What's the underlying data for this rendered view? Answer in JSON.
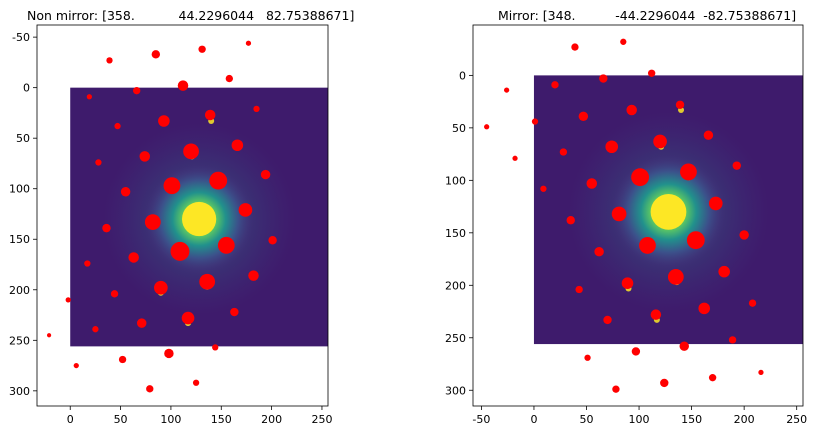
{
  "chart_data": [
    {
      "type": "scatter",
      "title": "Non mirror: [358.           44.2296044   82.75388671]",
      "xlabel": "",
      "ylabel": "",
      "xlim": [
        -33,
        256
      ],
      "ylim": [
        315,
        -62
      ],
      "y_inverted": true,
      "xticks": [
        0,
        50,
        100,
        150,
        200,
        250
      ],
      "yticks": [
        -50,
        0,
        50,
        100,
        150,
        200,
        250,
        300
      ],
      "grid": false,
      "background_image": {
        "extent": [
          0,
          256,
          0,
          256
        ],
        "colormap": "viridis",
        "description_hidden": true
      },
      "marker_color": "#ff0000",
      "points": [
        {
          "x": 85,
          "y": -33,
          "s": 4
        },
        {
          "x": 131,
          "y": -38,
          "s": 3.5
        },
        {
          "x": 177,
          "y": -44,
          "s": 2.5
        },
        {
          "x": 39,
          "y": -27,
          "s": 3
        },
        {
          "x": 158,
          "y": -9,
          "s": 3.5
        },
        {
          "x": 66,
          "y": 3,
          "s": 3.5
        },
        {
          "x": 112,
          "y": -2,
          "s": 5
        },
        {
          "x": 19,
          "y": 9,
          "s": 2.5
        },
        {
          "x": 185,
          "y": 21,
          "s": 3
        },
        {
          "x": 139,
          "y": 27,
          "s": 5
        },
        {
          "x": 93,
          "y": 33,
          "s": 5.5
        },
        {
          "x": 47,
          "y": 38,
          "s": 3
        },
        {
          "x": 166,
          "y": 57,
          "s": 5.5
        },
        {
          "x": 120,
          "y": 63,
          "s": 7.5
        },
        {
          "x": 74,
          "y": 68,
          "s": 5
        },
        {
          "x": 28,
          "y": 74,
          "s": 3
        },
        {
          "x": 194,
          "y": 86,
          "s": 4.5
        },
        {
          "x": 147,
          "y": 92,
          "s": 8.5
        },
        {
          "x": 101,
          "y": 97,
          "s": 8
        },
        {
          "x": 55,
          "y": 103,
          "s": 4.5
        },
        {
          "x": 174,
          "y": 121,
          "s": 6.5
        },
        {
          "x": 82,
          "y": 133,
          "s": 7.5
        },
        {
          "x": 36,
          "y": 139,
          "s": 4
        },
        {
          "x": 201,
          "y": 151,
          "s": 4
        },
        {
          "x": 155,
          "y": 156,
          "s": 8
        },
        {
          "x": 109,
          "y": 162,
          "s": 9
        },
        {
          "x": 63,
          "y": 168,
          "s": 5
        },
        {
          "x": 17,
          "y": 174,
          "s": 3
        },
        {
          "x": 182,
          "y": 186,
          "s": 5
        },
        {
          "x": 136,
          "y": 192,
          "s": 7.5
        },
        {
          "x": 90,
          "y": 198,
          "s": 6.5
        },
        {
          "x": 44,
          "y": 204,
          "s": 3.5
        },
        {
          "x": -2,
          "y": 210,
          "s": 2.5
        },
        {
          "x": 163,
          "y": 222,
          "s": 4
        },
        {
          "x": 117,
          "y": 228,
          "s": 6
        },
        {
          "x": 71,
          "y": 233,
          "s": 4.5
        },
        {
          "x": 25,
          "y": 239,
          "s": 3
        },
        {
          "x": -21,
          "y": 245,
          "s": 2
        },
        {
          "x": 144,
          "y": 257,
          "s": 3
        },
        {
          "x": 98,
          "y": 263,
          "s": 4.5
        },
        {
          "x": 52,
          "y": 269,
          "s": 3.5
        },
        {
          "x": 6,
          "y": 275,
          "s": 2.5
        },
        {
          "x": 125,
          "y": 292,
          "s": 3
        },
        {
          "x": 79,
          "y": 298,
          "s": 3.5
        }
      ]
    },
    {
      "type": "scatter",
      "title": "Mirror: [348.          -44.2296044  -82.75388671]",
      "xlabel": "",
      "ylabel": "",
      "xlim": [
        -58,
        256
      ],
      "ylim": [
        315,
        -48
      ],
      "y_inverted": true,
      "xticks": [
        -50,
        0,
        50,
        100,
        150,
        200,
        250
      ],
      "yticks": [
        0,
        50,
        100,
        150,
        200,
        250,
        300
      ],
      "grid": false,
      "background_image": {
        "extent": [
          0,
          256,
          0,
          256
        ],
        "colormap": "viridis",
        "description_hidden": true
      },
      "marker_color": "#ff0000",
      "points": [
        {
          "x": 39,
          "y": -27,
          "s": 3.5
        },
        {
          "x": 85,
          "y": -32,
          "s": 3
        },
        {
          "x": 112,
          "y": -2,
          "s": 3.5
        },
        {
          "x": 66,
          "y": 3,
          "s": 4
        },
        {
          "x": 20,
          "y": 9,
          "s": 3.5
        },
        {
          "x": -26,
          "y": 14,
          "s": 2.5
        },
        {
          "x": 139,
          "y": 28,
          "s": 4
        },
        {
          "x": 93,
          "y": 33,
          "s": 5
        },
        {
          "x": 47,
          "y": 39,
          "s": 4.5
        },
        {
          "x": 1,
          "y": 44,
          "s": 3
        },
        {
          "x": -45,
          "y": 49,
          "s": 2.5
        },
        {
          "x": 166,
          "y": 57,
          "s": 4.5
        },
        {
          "x": 120,
          "y": 63,
          "s": 6.5
        },
        {
          "x": 74,
          "y": 68,
          "s": 6
        },
        {
          "x": 28,
          "y": 73,
          "s": 3.5
        },
        {
          "x": -18,
          "y": 79,
          "s": 2.5
        },
        {
          "x": 193,
          "y": 86,
          "s": 4
        },
        {
          "x": 147,
          "y": 92,
          "s": 8
        },
        {
          "x": 101,
          "y": 97,
          "s": 8.5
        },
        {
          "x": 55,
          "y": 103,
          "s": 5
        },
        {
          "x": 9,
          "y": 108,
          "s": 3
        },
        {
          "x": 173,
          "y": 122,
          "s": 6.5
        },
        {
          "x": 81,
          "y": 132,
          "s": 7
        },
        {
          "x": 35,
          "y": 138,
          "s": 4
        },
        {
          "x": 200,
          "y": 152,
          "s": 4.5
        },
        {
          "x": 154,
          "y": 157,
          "s": 8.5
        },
        {
          "x": 108,
          "y": 162,
          "s": 8
        },
        {
          "x": 62,
          "y": 168,
          "s": 4.5
        },
        {
          "x": 181,
          "y": 187,
          "s": 5.5
        },
        {
          "x": 135,
          "y": 192,
          "s": 7.5
        },
        {
          "x": 89,
          "y": 198,
          "s": 5.5
        },
        {
          "x": 43,
          "y": 204,
          "s": 3.5
        },
        {
          "x": 208,
          "y": 217,
          "s": 3.5
        },
        {
          "x": 162,
          "y": 222,
          "s": 5.5
        },
        {
          "x": 116,
          "y": 228,
          "s": 5
        },
        {
          "x": 70,
          "y": 233,
          "s": 4
        },
        {
          "x": 189,
          "y": 252,
          "s": 3.5
        },
        {
          "x": 143,
          "y": 258,
          "s": 4.5
        },
        {
          "x": 97,
          "y": 263,
          "s": 4
        },
        {
          "x": 51,
          "y": 269,
          "s": 3
        },
        {
          "x": 216,
          "y": 283,
          "s": 2.5
        },
        {
          "x": 170,
          "y": 288,
          "s": 3.5
        },
        {
          "x": 124,
          "y": 293,
          "s": 4
        },
        {
          "x": 78,
          "y": 299,
          "s": 3.5
        }
      ]
    }
  ]
}
